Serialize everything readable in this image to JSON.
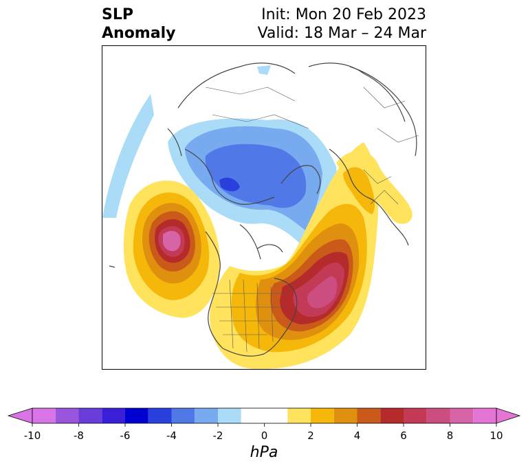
{
  "title": {
    "left_line1": "SLP",
    "left_line2": "Anomaly",
    "right_line1": "Init: Mon 20 Feb 2023",
    "right_line2": "Valid: 18 Mar – 24 Mar"
  },
  "map": {
    "projection": "north-polar-stereographic",
    "field": "SLP anomaly",
    "coastlines": true,
    "borders": true
  },
  "colorbar": {
    "label": "hPa",
    "extend": "both",
    "levels": [
      -10,
      -9,
      -8,
      -7,
      -6,
      -5,
      -4,
      -3,
      -2,
      -1,
      1,
      2,
      3,
      4,
      5,
      6,
      7,
      8,
      9,
      10
    ],
    "colors": [
      "#d874e6",
      "#9a55dd",
      "#6a3ddb",
      "#3a1fd9",
      "#0000d0",
      "#2a40dd",
      "#5078e6",
      "#78aaf0",
      "#aadcf8",
      "#ffffff",
      "#ffe35c",
      "#f5b80a",
      "#e0900f",
      "#c95a1a",
      "#b52a2a",
      "#c23a55",
      "#cc4e80",
      "#d864a8",
      "#e475d5"
    ],
    "ticks": [
      {
        "value": -10,
        "label": "-10"
      },
      {
        "value": -8,
        "label": "-8"
      },
      {
        "value": -6,
        "label": "-6"
      },
      {
        "value": -4,
        "label": "-4"
      },
      {
        "value": -2,
        "label": "-2"
      },
      {
        "value": 0,
        "label": "0"
      },
      {
        "value": 2,
        "label": "2"
      },
      {
        "value": 4,
        "label": "4"
      },
      {
        "value": 6,
        "label": "6"
      },
      {
        "value": 8,
        "label": "8"
      },
      {
        "value": 10,
        "label": "10"
      }
    ]
  }
}
